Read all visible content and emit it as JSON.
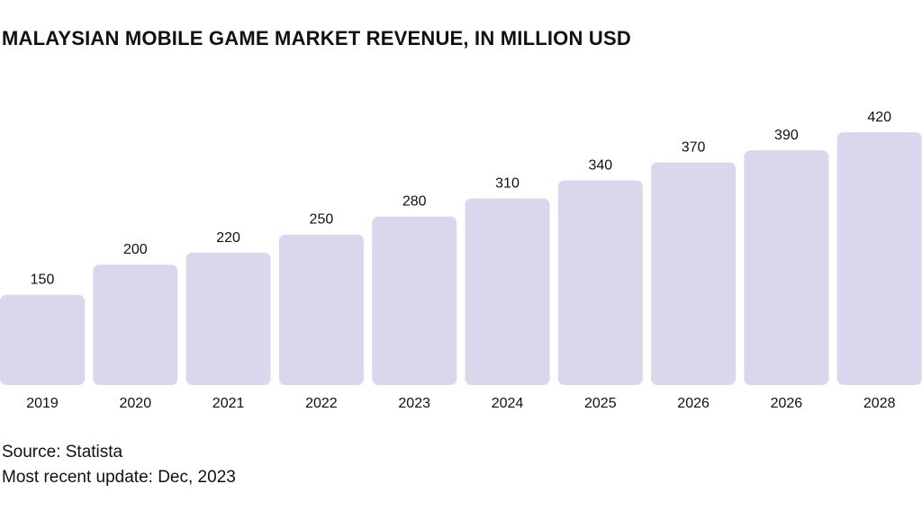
{
  "chart_data": {
    "type": "bar",
    "title": "MALAYSIAN MOBILE GAME MARKET REVENUE, IN MILLION USD",
    "xlabel": "",
    "ylabel": "",
    "categories": [
      "2019",
      "2020",
      "2021",
      "2022",
      "2023",
      "2024",
      "2025",
      "2026",
      "2026",
      "2028"
    ],
    "values": [
      150,
      200,
      220,
      250,
      280,
      310,
      340,
      370,
      390,
      420
    ],
    "value_labels": [
      "150",
      "200",
      "220",
      "250",
      "280",
      "310",
      "340",
      "370",
      "390",
      "420"
    ],
    "ylim": [
      0,
      420
    ],
    "grid": false,
    "legend": "none",
    "bar_color": "#dcd6ec"
  },
  "footer": {
    "source": "Source: Statista",
    "update": "Most recent update: Dec, 2023"
  }
}
